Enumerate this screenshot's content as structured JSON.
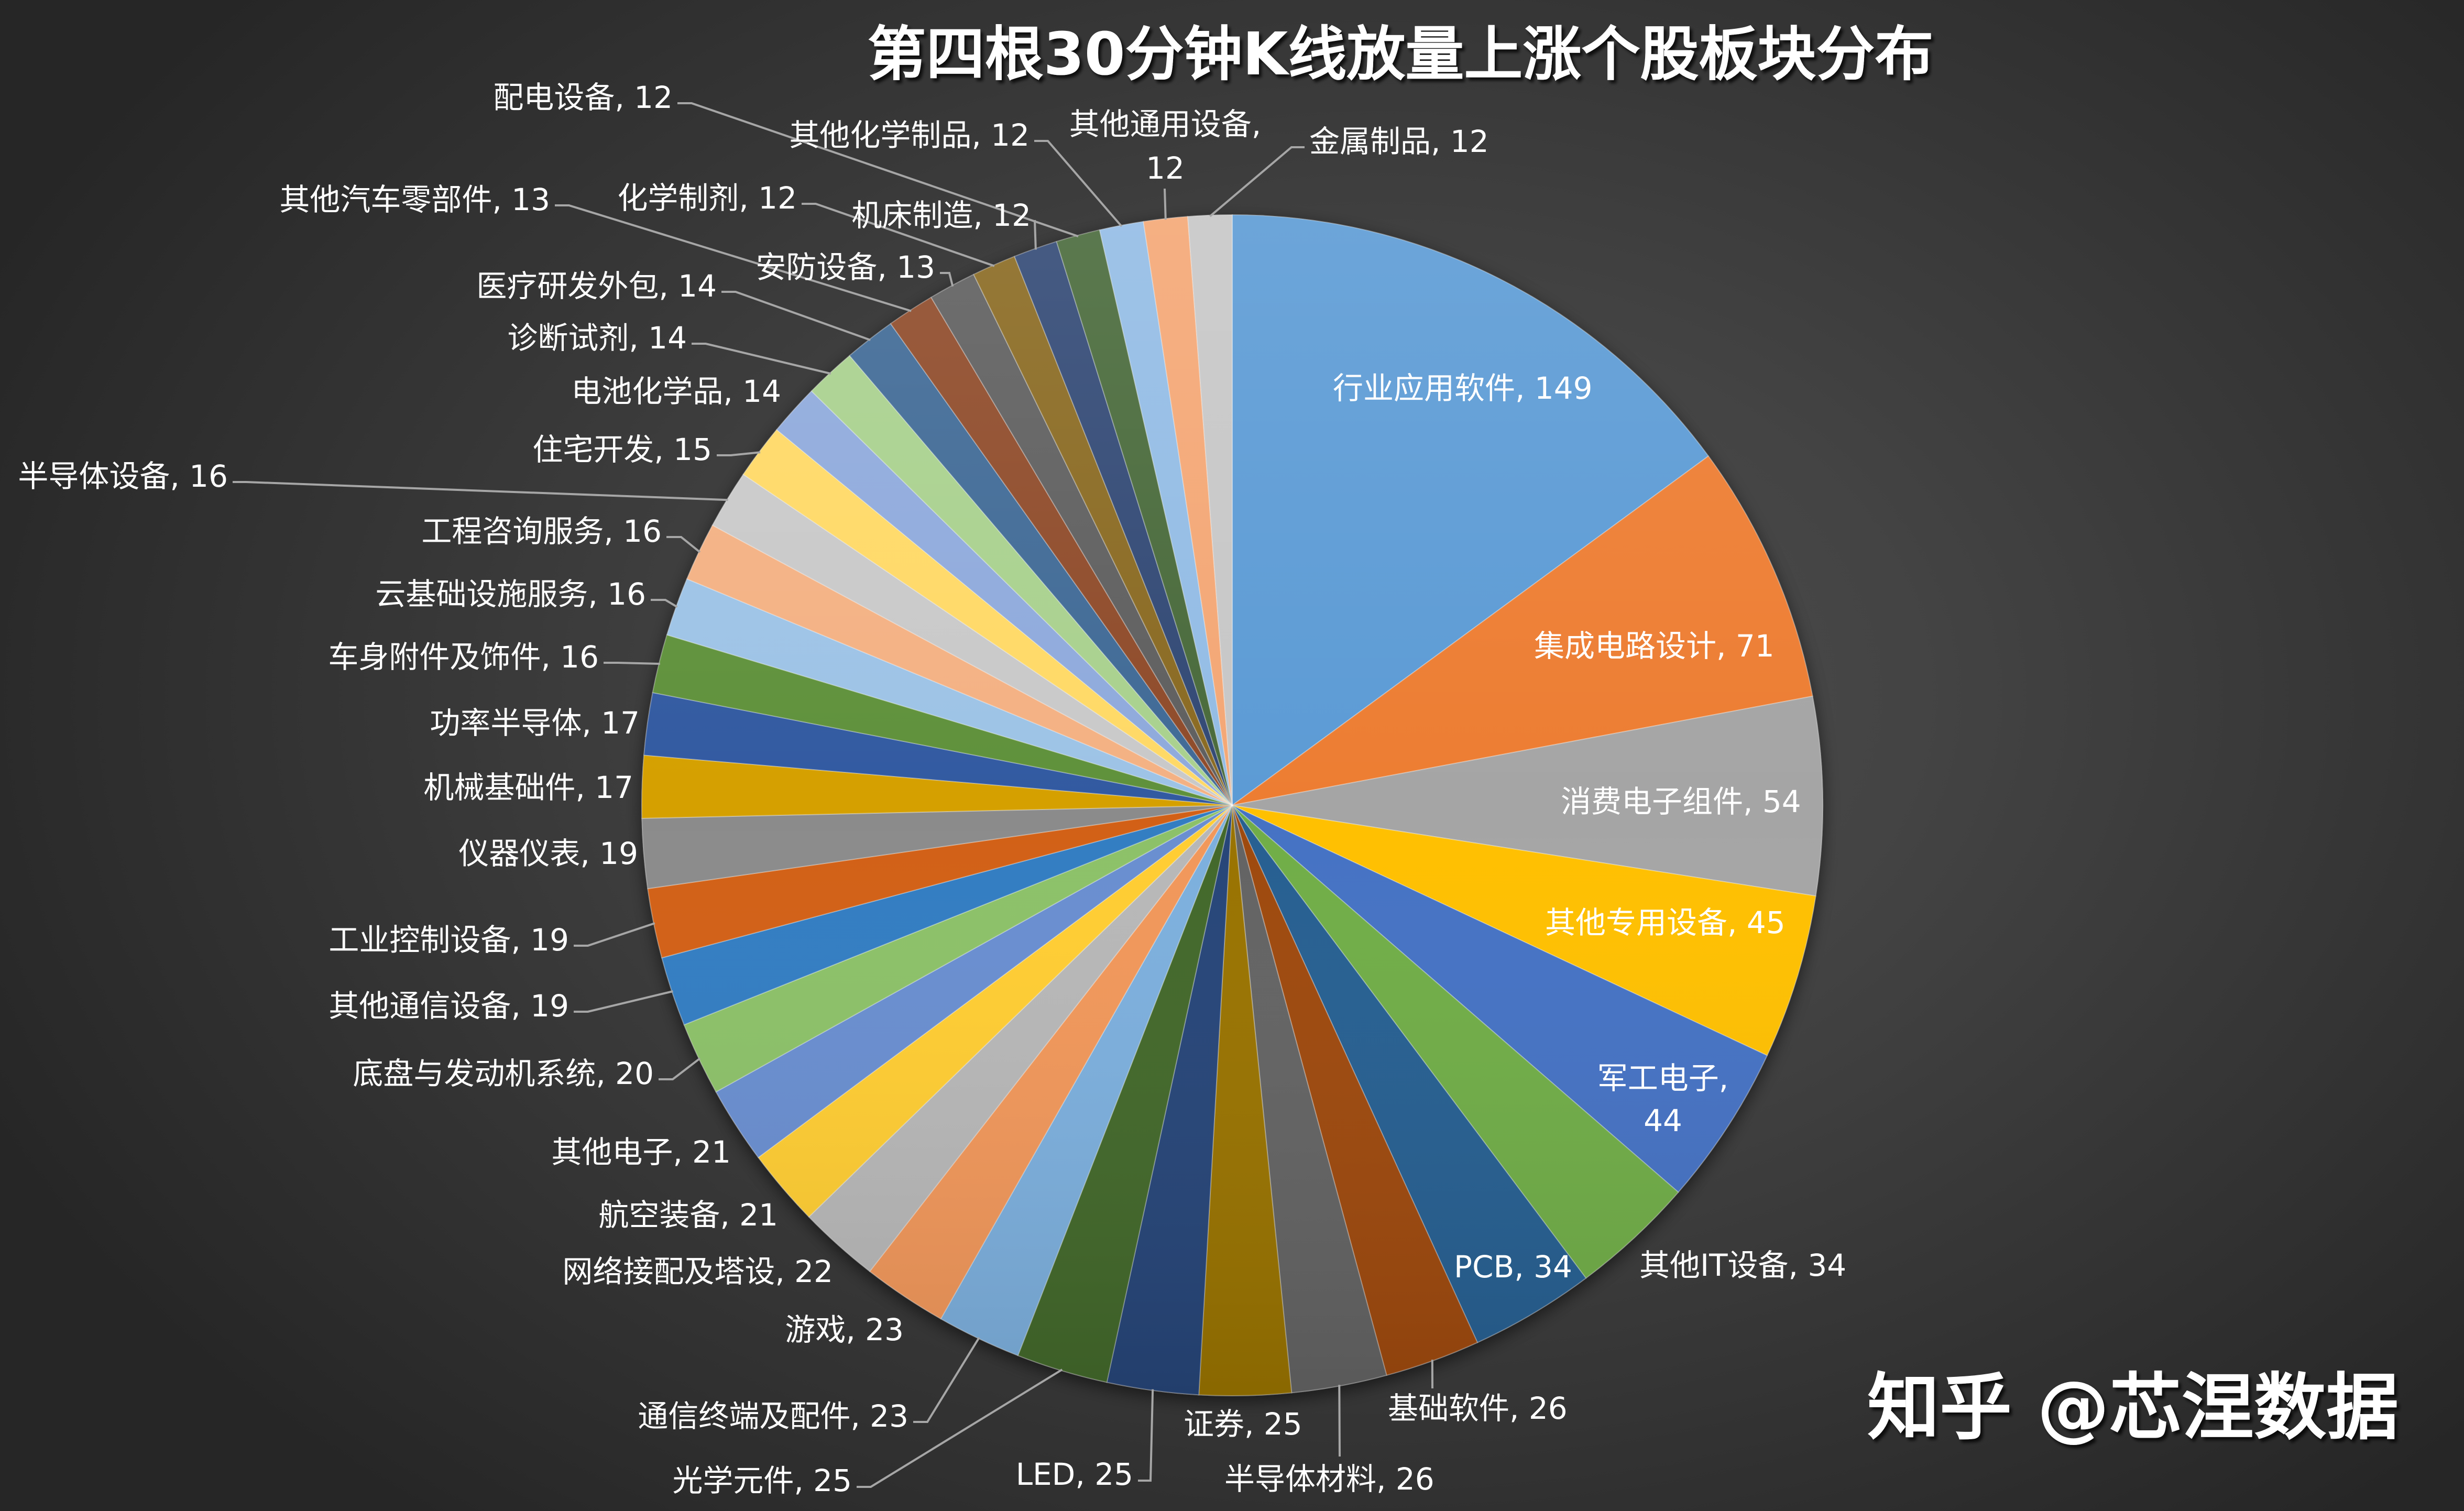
{
  "title": "第四根30分钟K线放量上涨个股板块分布",
  "watermark": "知乎 @芯涅数据",
  "chart_data": {
    "type": "pie",
    "title": "第四根30分钟K线放量上涨个股板块分布",
    "xlabel": "",
    "ylabel": "",
    "legend": "none",
    "start_angle": "12 o'clock, clockwise",
    "total": 998,
    "categories": [
      "行业应用软件",
      "集成电路设计",
      "消费电子组件",
      "其他专用设备",
      "军工电子",
      "其他IT设备",
      "PCB",
      "基础软件",
      "半导体材料",
      "证券",
      "LED",
      "光学元件",
      "通信终端及配件",
      "游戏",
      "网络接配及塔设",
      "航空装备",
      "其他电子",
      "底盘与发动机系统",
      "其他通信设备",
      "工业控制设备",
      "仪器仪表",
      "机械基础件",
      "功率半导体",
      "车身附件及饰件",
      "云基础设施服务",
      "工程咨询服务",
      "半导体设备",
      "住宅开发",
      "电池化学品",
      "诊断试剂",
      "医疗研发外包",
      "其他汽车零部件",
      "安防设备",
      "化学制剂",
      "机床制造",
      "配电设备",
      "其他化学制品",
      "其他通用设备",
      "金属制品"
    ],
    "values": [
      149,
      71,
      54,
      45,
      44,
      34,
      34,
      26,
      26,
      25,
      25,
      25,
      23,
      23,
      22,
      21,
      21,
      20,
      19,
      19,
      19,
      17,
      17,
      16,
      16,
      16,
      16,
      15,
      14,
      14,
      14,
      13,
      13,
      12,
      12,
      12,
      12,
      12,
      12
    ],
    "colors": [
      "#5B9BD5",
      "#ED7D31",
      "#A5A5A5",
      "#FFC000",
      "#4472C4",
      "#70AD47",
      "#255E91",
      "#9E480E",
      "#636363",
      "#997300",
      "#264478",
      "#43682B",
      "#7CAFDD",
      "#F1975A",
      "#B7B7B7",
      "#FFCD33",
      "#698ED0",
      "#8CC168",
      "#327DC2",
      "#D26012",
      "#8B8B8B",
      "#D5A000",
      "#335AA1",
      "#5E913B",
      "#9DC3E6",
      "#F4B183",
      "#C9C9C9",
      "#FFD966",
      "#8FAADC",
      "#A9D18E",
      "#3F6A96",
      "#8F4B2B",
      "#5F5F5F",
      "#8A6B22",
      "#334A75",
      "#4A6A3A",
      "#93BCE5",
      "#F4A774",
      "#C7C7C7"
    ]
  },
  "data_labels": [
    {
      "lines": [
        "行业应用软件, 149"
      ]
    },
    {
      "lines": [
        "集成电路设计, 71"
      ]
    },
    {
      "lines": [
        "消费电子组件, 54"
      ]
    },
    {
      "lines": [
        "其他专用设备, 45"
      ]
    },
    {
      "lines": [
        "军工电子,",
        "44"
      ]
    },
    {
      "lines": [
        "其他IT设备, 34"
      ]
    },
    {
      "lines": [
        "PCB, 34"
      ]
    },
    {
      "lines": [
        "基础软件, 26"
      ]
    },
    {
      "lines": [
        "半导体材料, 26"
      ]
    },
    {
      "lines": [
        "证券, 25"
      ]
    },
    {
      "lines": [
        "LED, 25"
      ]
    },
    {
      "lines": [
        "光学元件, 25"
      ]
    },
    {
      "lines": [
        "通信终端及配件, 23"
      ]
    },
    {
      "lines": [
        "游戏, 23"
      ]
    },
    {
      "lines": [
        "网络接配及塔设, 22"
      ]
    },
    {
      "lines": [
        "航空装备, 21"
      ]
    },
    {
      "lines": [
        "其他电子, 21"
      ]
    },
    {
      "lines": [
        "底盘与发动机系统, 20"
      ]
    },
    {
      "lines": [
        "其他通信设备, 19"
      ]
    },
    {
      "lines": [
        "工业控制设备, 19"
      ]
    },
    {
      "lines": [
        "仪器仪表, 19"
      ]
    },
    {
      "lines": [
        "机械基础件, 17"
      ]
    },
    {
      "lines": [
        "功率半导体, 17"
      ]
    },
    {
      "lines": [
        "车身附件及饰件, 16"
      ]
    },
    {
      "lines": [
        "云基础设施服务, 16"
      ]
    },
    {
      "lines": [
        "工程咨询服务, 16"
      ]
    },
    {
      "lines": [
        "半导体设备, 16"
      ]
    },
    {
      "lines": [
        "住宅开发, 15"
      ]
    },
    {
      "lines": [
        "电池化学品, 14"
      ]
    },
    {
      "lines": [
        "诊断试剂, 14"
      ]
    },
    {
      "lines": [
        "医疗研发外包, 14"
      ]
    },
    {
      "lines": [
        "其他汽车零部件, 13"
      ]
    },
    {
      "lines": [
        "安防设备, 13"
      ]
    },
    {
      "lines": [
        "化学制剂, 12"
      ]
    },
    {
      "lines": [
        "机床制造, 12"
      ]
    },
    {
      "lines": [
        "配电设备, 12"
      ]
    },
    {
      "lines": [
        "其他化学制品, 12"
      ]
    },
    {
      "lines": [
        "其他通用设备,",
        "12"
      ]
    },
    {
      "lines": [
        "金属制品, 12"
      ]
    }
  ]
}
